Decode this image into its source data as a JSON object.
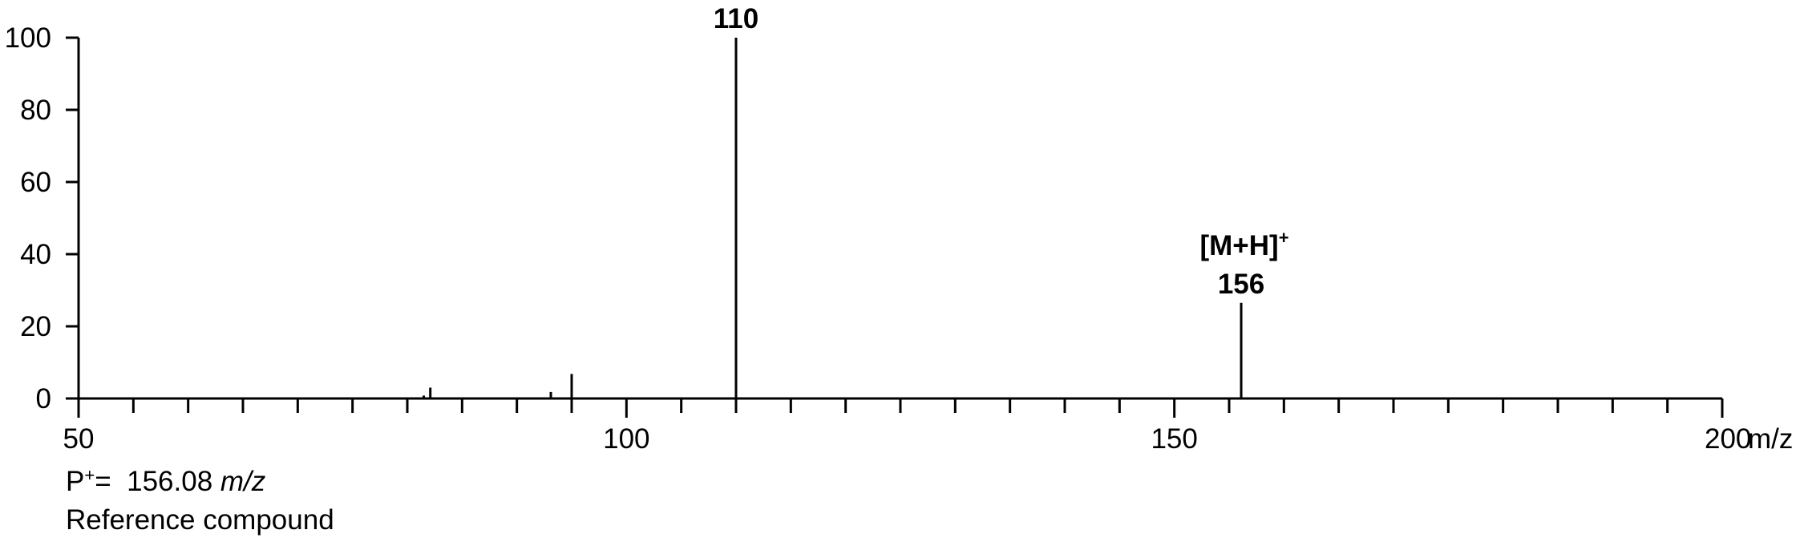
{
  "chart_data": {
    "type": "bar",
    "title": "",
    "xlabel": "",
    "ylabel": "",
    "x_unit_label": "m/z",
    "xlim": [
      50,
      200
    ],
    "ylim": [
      0,
      100
    ],
    "x_ticks": [
      50,
      100,
      150,
      200
    ],
    "y_ticks": [
      0,
      20,
      40,
      60,
      80,
      100
    ],
    "x_minor_step": 5,
    "grid": false,
    "legend": "none",
    "peaks": [
      {
        "mz": 81.5,
        "intensity": 0.8
      },
      {
        "mz": 82.1,
        "intensity": 3.0
      },
      {
        "mz": 93.1,
        "intensity": 1.8
      },
      {
        "mz": 95.0,
        "intensity": 6.8
      },
      {
        "mz": 110.0,
        "intensity": 100.0,
        "label": "110"
      },
      {
        "mz": 156.1,
        "intensity": 26.5,
        "label": "156",
        "annotation_main": "[M+H]",
        "annotation_sup": "+"
      }
    ]
  },
  "caption": {
    "line1_prefix": "P",
    "line1_sup": "+",
    "line1_value": "=  156.08 ",
    "line1_unit": "m/z",
    "line2": "Reference compound"
  }
}
